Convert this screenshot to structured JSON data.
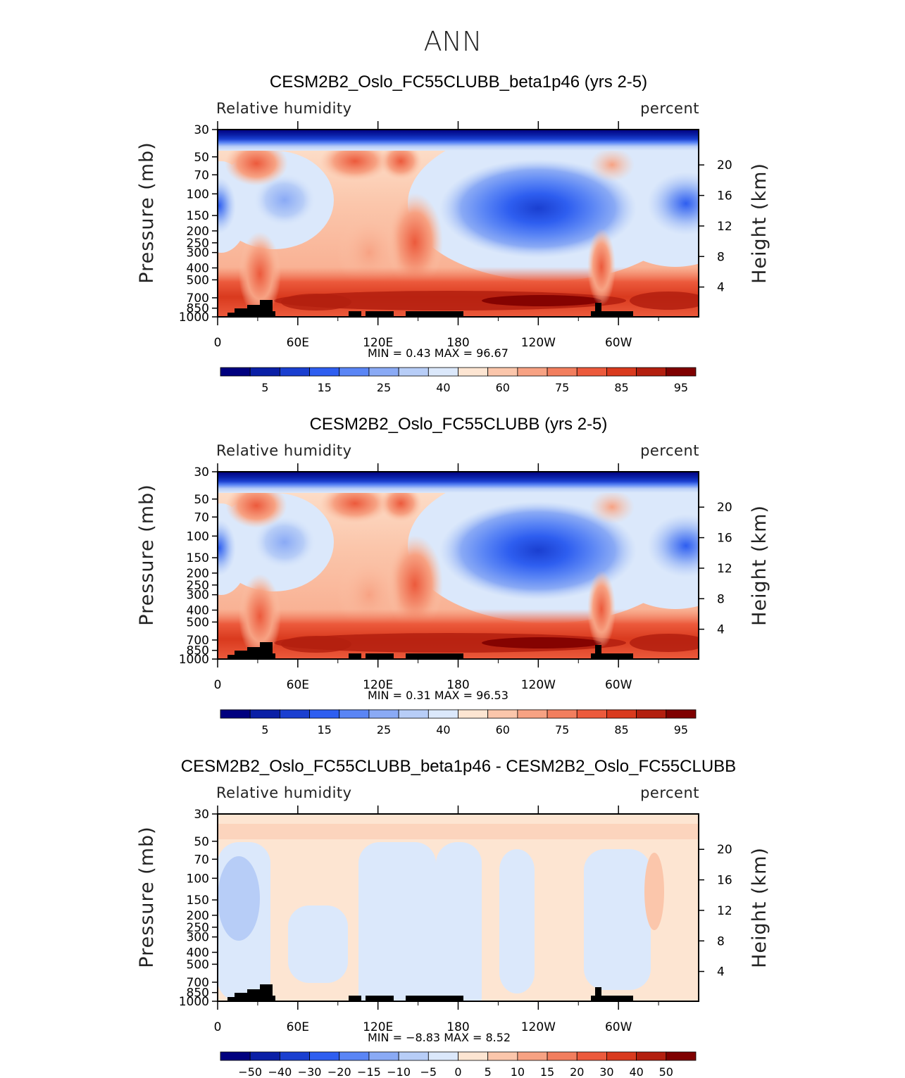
{
  "figure": {
    "title": "ANN"
  },
  "chart_data": [
    {
      "type": "heatmap",
      "title": "CESM2B2_Oslo_FC55CLUBB_beta1p46 (yrs 2-5)",
      "left_label": "Relative humidity",
      "right_label": "percent",
      "ylabel": "Pressure (mb)",
      "ylabel_right": "Height (km)",
      "x_ticks": [
        "0",
        "60E",
        "120E",
        "180",
        "120W",
        "60W"
      ],
      "y_ticks": [
        "30",
        "50",
        "70",
        "100",
        "150",
        "200",
        "250",
        "300",
        "400",
        "500",
        "700",
        "850",
        "1000"
      ],
      "y_ticks_right": [
        "20",
        "16",
        "12",
        "8",
        "4"
      ],
      "stats": {
        "min_label": "MIN =",
        "min": "0.43",
        "max_label": "MAX =",
        "max": "96.67"
      },
      "colorbar": {
        "labels": [
          "5",
          "15",
          "25",
          "40",
          "60",
          "75",
          "85",
          "95"
        ],
        "colors": [
          "#00007f",
          "#0a1fa6",
          "#1a3fd0",
          "#2e5ef0",
          "#5a85f5",
          "#8aaaf5",
          "#b7cdf7",
          "#dbe8fb",
          "#fde5d2",
          "#fbc6ab",
          "#f7a283",
          "#f27e5e",
          "#ec5a3c",
          "#d93a1e",
          "#b31f0f",
          "#7f0000"
        ]
      },
      "grid": false
    },
    {
      "type": "heatmap",
      "title": "CESM2B2_Oslo_FC55CLUBB (yrs 2-5)",
      "left_label": "Relative humidity",
      "right_label": "percent",
      "ylabel": "Pressure (mb)",
      "ylabel_right": "Height (km)",
      "x_ticks": [
        "0",
        "60E",
        "120E",
        "180",
        "120W",
        "60W"
      ],
      "y_ticks": [
        "30",
        "50",
        "70",
        "100",
        "150",
        "200",
        "250",
        "300",
        "400",
        "500",
        "700",
        "850",
        "1000"
      ],
      "y_ticks_right": [
        "20",
        "16",
        "12",
        "8",
        "4"
      ],
      "stats": {
        "min_label": "MIN =",
        "min": "0.31",
        "max_label": "MAX =",
        "max": "96.53"
      },
      "colorbar": {
        "labels": [
          "5",
          "15",
          "25",
          "40",
          "60",
          "75",
          "85",
          "95"
        ],
        "colors": [
          "#00007f",
          "#0a1fa6",
          "#1a3fd0",
          "#2e5ef0",
          "#5a85f5",
          "#8aaaf5",
          "#b7cdf7",
          "#dbe8fb",
          "#fde5d2",
          "#fbc6ab",
          "#f7a283",
          "#f27e5e",
          "#ec5a3c",
          "#d93a1e",
          "#b31f0f",
          "#7f0000"
        ]
      },
      "grid": false
    },
    {
      "type": "heatmap",
      "title": "CESM2B2_Oslo_FC55CLUBB_beta1p46 - CESM2B2_Oslo_FC55CLUBB",
      "left_label": "Relative humidity",
      "right_label": "percent",
      "ylabel": "Pressure (mb)",
      "ylabel_right": "Height (km)",
      "x_ticks": [
        "0",
        "60E",
        "120E",
        "180",
        "120W",
        "60W"
      ],
      "y_ticks": [
        "30",
        "50",
        "70",
        "100",
        "150",
        "200",
        "250",
        "300",
        "400",
        "500",
        "700",
        "850",
        "1000"
      ],
      "y_ticks_right": [
        "20",
        "16",
        "12",
        "8",
        "4"
      ],
      "stats": {
        "min_label": "MIN =",
        "min": "−8.83",
        "max_label": "MAX =",
        "max": "8.52"
      },
      "colorbar": {
        "labels": [
          "−50",
          "−40",
          "−30",
          "−20",
          "−15",
          "−10",
          "−5",
          "0",
          "5",
          "10",
          "15",
          "20",
          "30",
          "40",
          "50"
        ],
        "colors": [
          "#00007f",
          "#0a1fa6",
          "#1a3fd0",
          "#2e5ef0",
          "#5a85f5",
          "#8aaaf5",
          "#b7cdf7",
          "#dbe8fb",
          "#fde5d2",
          "#fbc6ab",
          "#f7a283",
          "#f27e5e",
          "#ec5a3c",
          "#d93a1e",
          "#b31f0f",
          "#7f0000"
        ]
      },
      "grid": false
    }
  ]
}
